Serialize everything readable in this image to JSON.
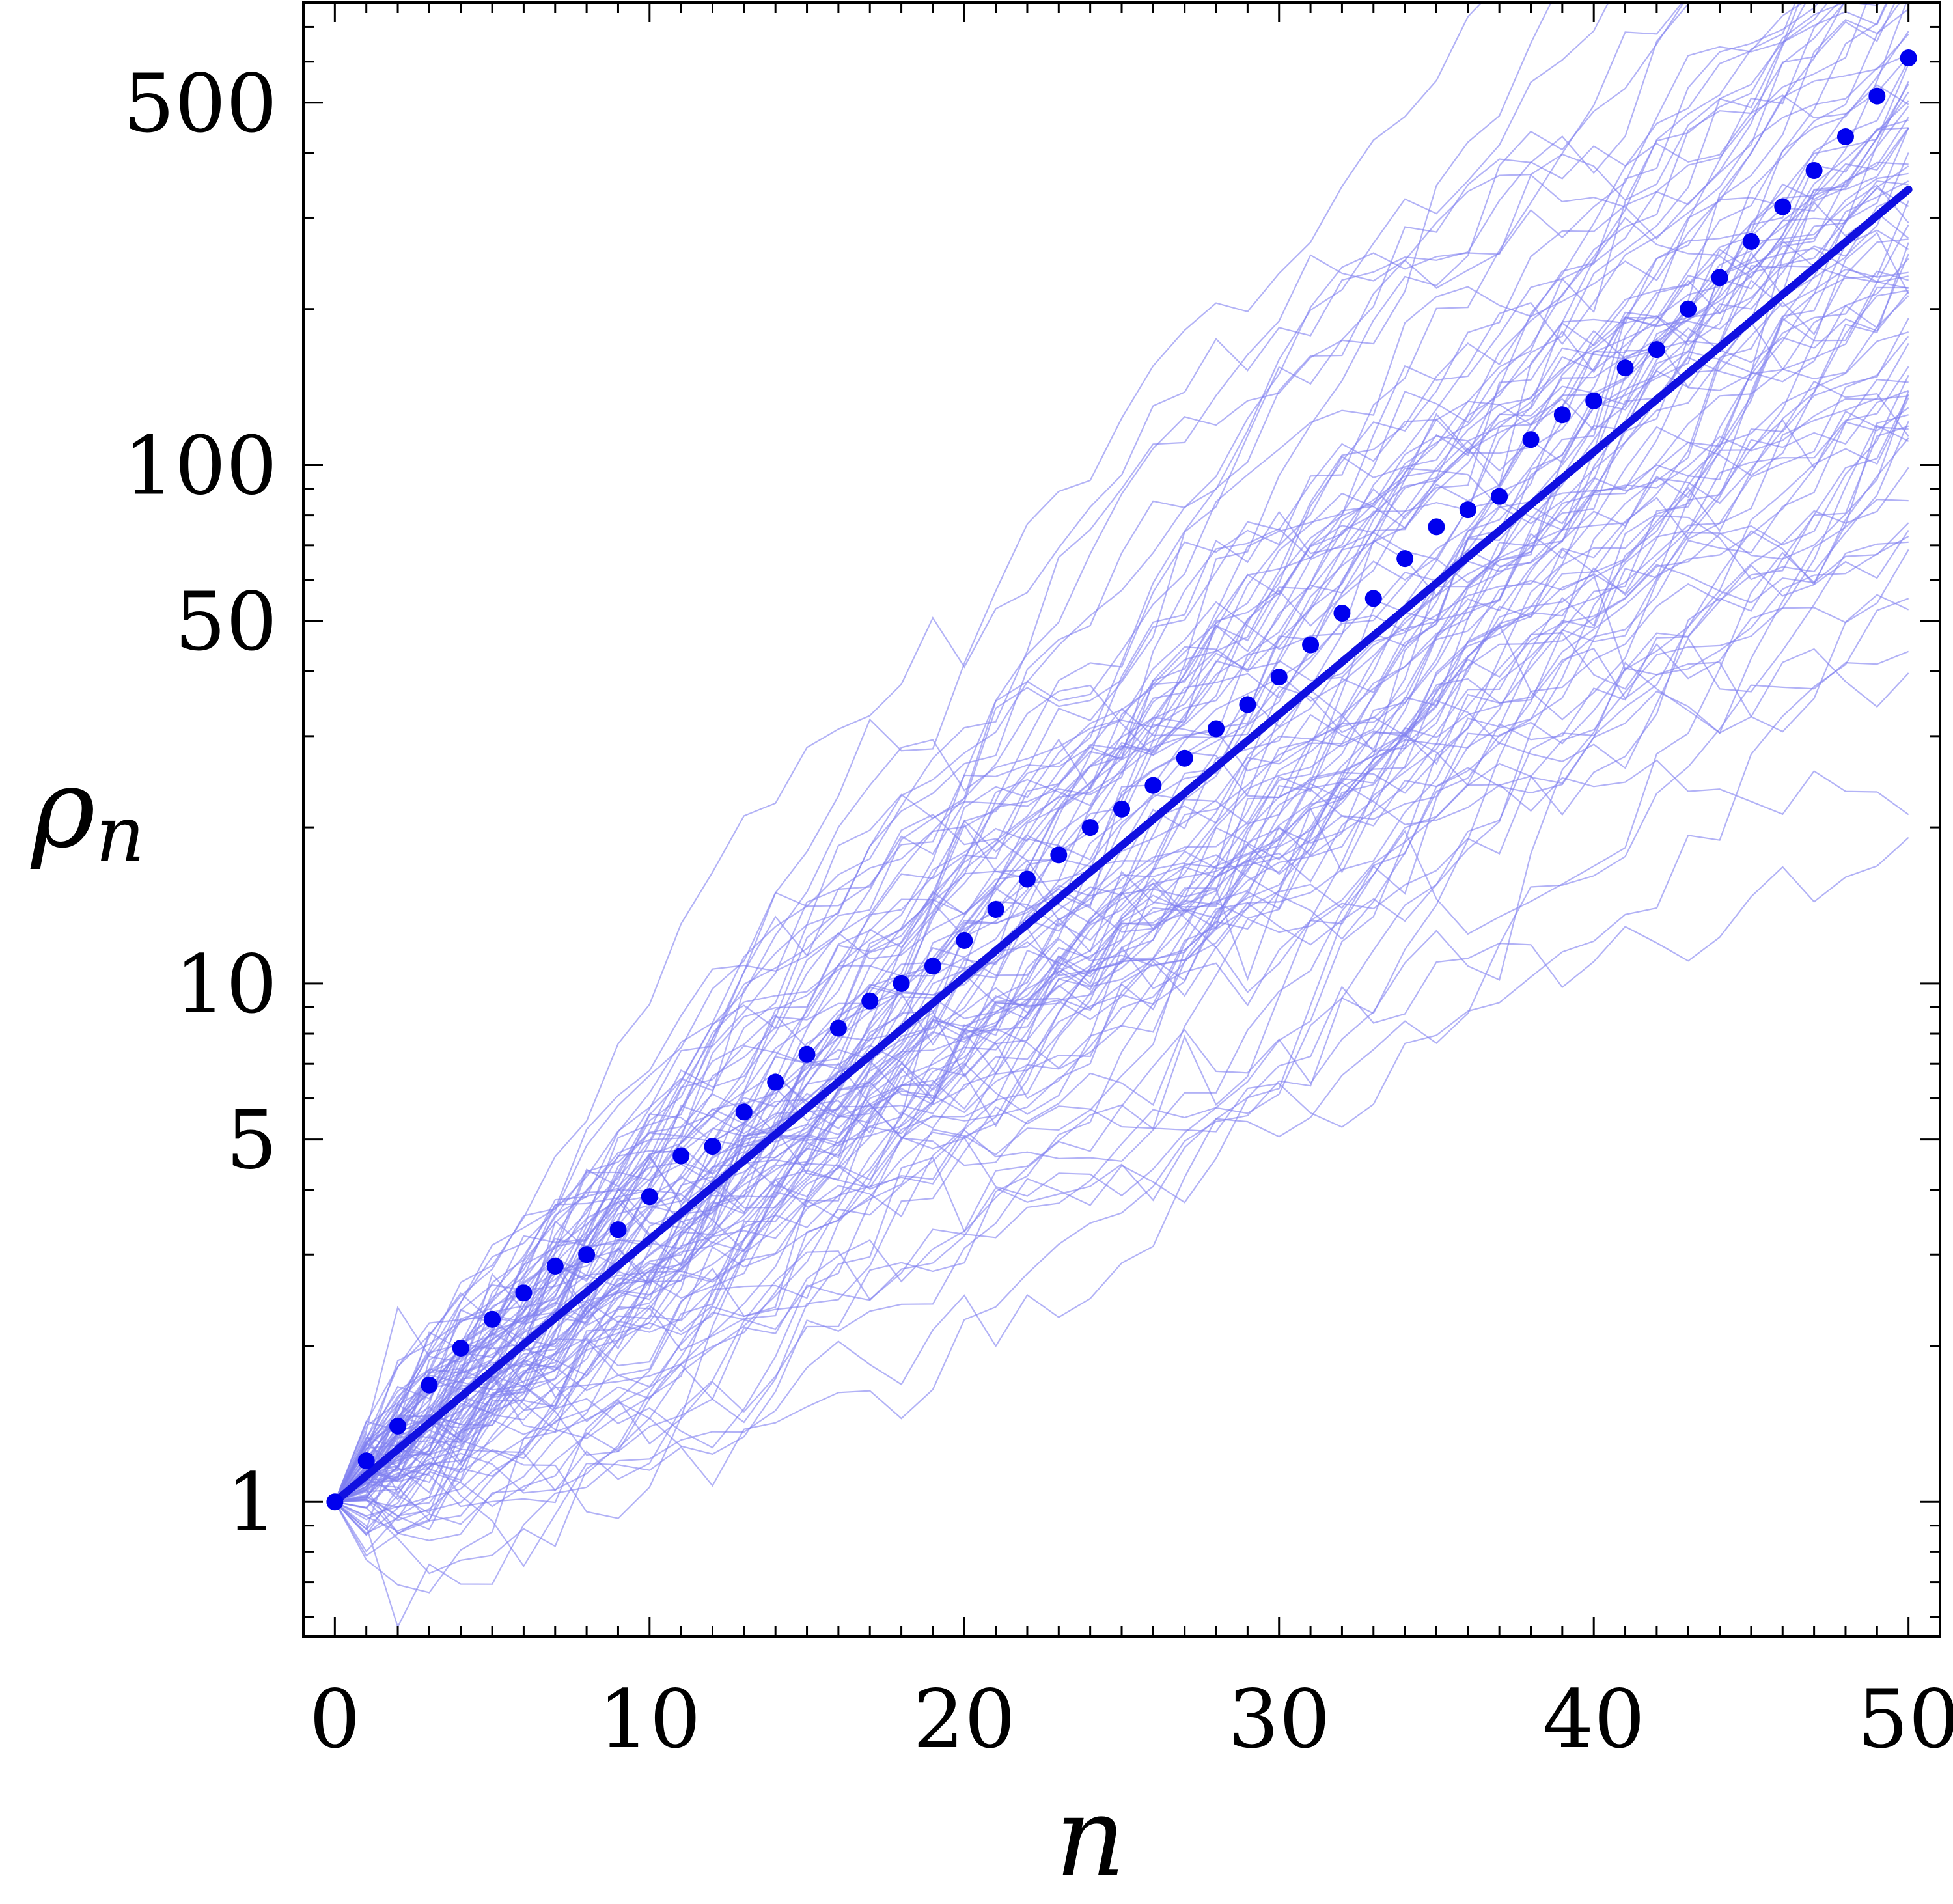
{
  "chart_data": {
    "type": "line",
    "title": "",
    "xlabel": "n",
    "ylabel": "ρ",
    "ylabel_subscript": "n",
    "xlim": [
      -1,
      51
    ],
    "ylim": [
      0.55,
      780
    ],
    "yscale": "log",
    "grid": false,
    "legend": "none",
    "x_ticks": [
      0,
      10,
      20,
      30,
      40,
      50
    ],
    "x_tick_labels": [
      "0",
      "10",
      "20",
      "30",
      "40",
      "50"
    ],
    "y_ticks": [
      1,
      5,
      10,
      50,
      100,
      500
    ],
    "y_tick_labels": [
      "1",
      "5",
      "10",
      "50",
      "100",
      "500"
    ],
    "y_minor_ticks": [
      0.6,
      0.7,
      0.8,
      0.9,
      2,
      3,
      4,
      6,
      7,
      8,
      9,
      20,
      30,
      40,
      60,
      70,
      80,
      90,
      200,
      300,
      400,
      600,
      700
    ],
    "x_minor_ticks": [
      1,
      2,
      3,
      4,
      5,
      6,
      7,
      8,
      9,
      11,
      12,
      13,
      14,
      15,
      16,
      17,
      18,
      19,
      21,
      22,
      23,
      24,
      25,
      26,
      27,
      28,
      29,
      31,
      32,
      33,
      34,
      35,
      36,
      37,
      38,
      39,
      41,
      42,
      43,
      44,
      45,
      46,
      47,
      48,
      49
    ],
    "series": [
      {
        "kind": "trajectories",
        "count": 100,
        "color": "#7f7ff0",
        "start": 1,
        "log_growth_per_step": 0.118,
        "log_step_sd": 0.13,
        "log_drift_sd": 0.014,
        "n_max": 50
      },
      {
        "kind": "line",
        "color": "#1010e0",
        "x": [
          0,
          50
        ],
        "y": [
          1.0,
          340
        ]
      },
      {
        "kind": "points",
        "color": "#0000ee",
        "x": [
          0,
          1,
          2,
          3,
          4,
          5,
          6,
          7,
          8,
          9,
          10,
          11,
          12,
          13,
          14,
          15,
          16,
          17,
          18,
          19,
          20,
          21,
          22,
          23,
          24,
          25,
          26,
          27,
          28,
          29,
          30,
          31,
          32,
          33,
          34,
          35,
          36,
          37,
          38,
          39,
          40,
          41,
          42,
          43,
          44,
          45,
          46,
          47,
          48,
          49,
          50
        ],
        "y": [
          1.0,
          1.2,
          1.4,
          1.68,
          1.98,
          2.25,
          2.53,
          2.85,
          3.0,
          3.35,
          3.88,
          4.65,
          4.85,
          5.65,
          6.45,
          7.3,
          8.2,
          9.25,
          10.0,
          10.8,
          12.1,
          13.9,
          15.9,
          17.7,
          20.0,
          21.7,
          24.1,
          27.2,
          31.0,
          34.5,
          39.0,
          45.0,
          51.8,
          55.3,
          66.0,
          76.0,
          82.0,
          87.0,
          112,
          125,
          133,
          154,
          167,
          200,
          230,
          270,
          315,
          370,
          430,
          515,
          610
        ]
      }
    ]
  }
}
